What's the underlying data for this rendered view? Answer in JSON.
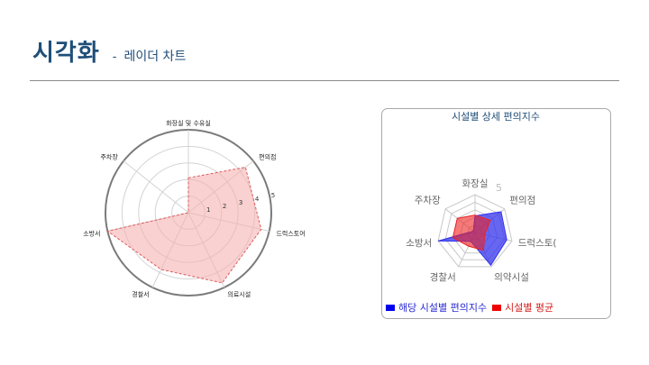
{
  "header": {
    "title": "시각화",
    "dash": "-",
    "subtitle": "레이더 차트"
  },
  "chart_data": [
    {
      "type": "radar",
      "categories": [
        "화장실 및 수유실",
        "편의점",
        "드럭스토어",
        "의료시설",
        "경찰서",
        "소방서",
        "주차장"
      ],
      "scale_labels": [
        "1",
        "2",
        "3",
        "4",
        "5"
      ],
      "rmax": 5,
      "series": [
        {
          "values": [
            2.1,
            4.4,
            4.5,
            4.7,
            3.8,
            5.0,
            0.0
          ],
          "color": "#f5b3b3",
          "stroke": "#e05a5a"
        }
      ]
    },
    {
      "type": "radar",
      "title": "시설별 상세 편의지수",
      "categories": [
        "화장실",
        "편의점",
        "드럭스토(",
        "의약시설",
        "경찰서",
        "소방서",
        "주차장"
      ],
      "scale_labels": [
        "5"
      ],
      "rmax": 5,
      "series": [
        {
          "name": "해당 시설별 편의지수",
          "values": [
            2.2,
            4.4,
            4.3,
            4.8,
            1.3,
            5.0,
            0.3
          ],
          "color": "#3333ee",
          "legend_text_color": "#2a2ad4"
        },
        {
          "name": "시설별 평균",
          "values": [
            2.3,
            2.6,
            1.3,
            2.6,
            2.0,
            3.0,
            3.0
          ],
          "color": "#ee2222",
          "legend_text_color": "#d42020"
        }
      ]
    }
  ]
}
